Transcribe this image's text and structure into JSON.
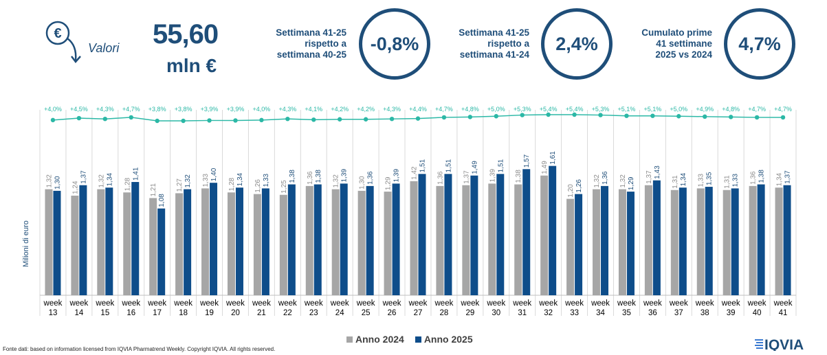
{
  "header": {
    "kpi_label": "Valori",
    "kpi_value": "55,60",
    "kpi_unit": "mln €",
    "comparisons": [
      {
        "lines": [
          "Settimana 41-25",
          "rispetto a",
          "settimana 40-25"
        ],
        "value": "-0,8%"
      },
      {
        "lines": [
          "Settimana 41-25",
          "rispetto a",
          "settimana 41-24"
        ],
        "value": "2,4%"
      },
      {
        "lines": [
          "Cumulato prime",
          "41 settimane",
          "2025 vs 2024"
        ],
        "value": "4,7%"
      }
    ]
  },
  "colors": {
    "accent": "#1f4e79",
    "series_2024": "#a6a6a6",
    "series_2025": "#0e4d8a",
    "line": "#2bb8a6"
  },
  "chart_data": {
    "type": "bar",
    "categories": [
      "week 13",
      "week 14",
      "week 15",
      "week 16",
      "week 17",
      "week 18",
      "week 19",
      "week 20",
      "week 21",
      "week 22",
      "week 23",
      "week 24",
      "week 25",
      "week 26",
      "week 27",
      "week 28",
      "week 29",
      "week 30",
      "week 31",
      "week 32",
      "week 33",
      "week 34",
      "week 35",
      "week 36",
      "week 37",
      "week 38",
      "week 39",
      "week 40",
      "week 41"
    ],
    "series": [
      {
        "name": "Anno 2024",
        "values": [
          1.32,
          1.24,
          1.32,
          1.28,
          1.21,
          1.27,
          1.33,
          1.28,
          1.26,
          1.25,
          1.36,
          1.32,
          1.3,
          1.29,
          1.42,
          1.36,
          1.37,
          1.39,
          1.38,
          1.49,
          1.2,
          1.32,
          1.32,
          1.37,
          1.31,
          1.33,
          1.31,
          1.36,
          1.34
        ],
        "labels": [
          "1,32",
          "1,24",
          "1,32",
          "1,28",
          "1,21",
          "1,27",
          "1,33",
          "1,28",
          "1,26",
          "1,25",
          "1,36",
          "1,32",
          "1,30",
          "1,29",
          "1,42",
          "1,36",
          "1,37",
          "1,39",
          "1,38",
          "1,49",
          "1,20",
          "1,32",
          "1,32",
          "1,37",
          "1,31",
          "1,33",
          "1,31",
          "1,36",
          "1,34"
        ]
      },
      {
        "name": "Anno 2025",
        "values": [
          1.3,
          1.37,
          1.34,
          1.41,
          1.08,
          1.32,
          1.4,
          1.34,
          1.33,
          1.38,
          1.38,
          1.39,
          1.36,
          1.39,
          1.51,
          1.51,
          1.49,
          1.51,
          1.57,
          1.61,
          1.26,
          1.36,
          1.29,
          1.43,
          1.34,
          1.35,
          1.33,
          1.38,
          1.37
        ],
        "labels": [
          "1,30",
          "1,37",
          "1,34",
          "1,41",
          "1,08",
          "1,32",
          "1,40",
          "1,34",
          "1,33",
          "1,38",
          "1,38",
          "1,39",
          "1,36",
          "1,39",
          "1,51",
          "1,51",
          "1,49",
          "1,51",
          "1,57",
          "1,61",
          "1,26",
          "1,36",
          "1,29",
          "1,43",
          "1,34",
          "1,35",
          "1,33",
          "1,38",
          "1,37"
        ]
      }
    ],
    "line_series": {
      "values": [
        4.0,
        4.5,
        4.3,
        4.7,
        3.8,
        3.8,
        3.9,
        3.9,
        4.0,
        4.3,
        4.1,
        4.2,
        4.2,
        4.3,
        4.4,
        4.7,
        4.8,
        5.0,
        5.3,
        5.4,
        5.4,
        5.3,
        5.1,
        5.1,
        5.0,
        4.9,
        4.8,
        4.7,
        4.7
      ],
      "labels": [
        "+4,0%",
        "+4,5%",
        "+4,3%",
        "+4,7%",
        "+3,8%",
        "+3,8%",
        "+3,9%",
        "+3,9%",
        "+4,0%",
        "+4,3%",
        "+4,1%",
        "+4,2%",
        "+4,2%",
        "+4,3%",
        "+4,4%",
        "+4,7%",
        "+4,8%",
        "+5,0%",
        "+5,3%",
        "+5,4%",
        "+5,4%",
        "+5,3%",
        "+5,1%",
        "+5,1%",
        "+5,0%",
        "+4,9%",
        "+4,8%",
        "+4,7%",
        "+4,7%"
      ]
    },
    "ylabel": "Milioni di euro",
    "legend": [
      "Anno 2024",
      "Anno 2025"
    ]
  },
  "footer": {
    "source": "Fonte dati: based on information licensed from IQVIA Pharmatrend Weekly. Copyright IQVIA. All rights reserved.",
    "logo_text": "IQVIA"
  }
}
